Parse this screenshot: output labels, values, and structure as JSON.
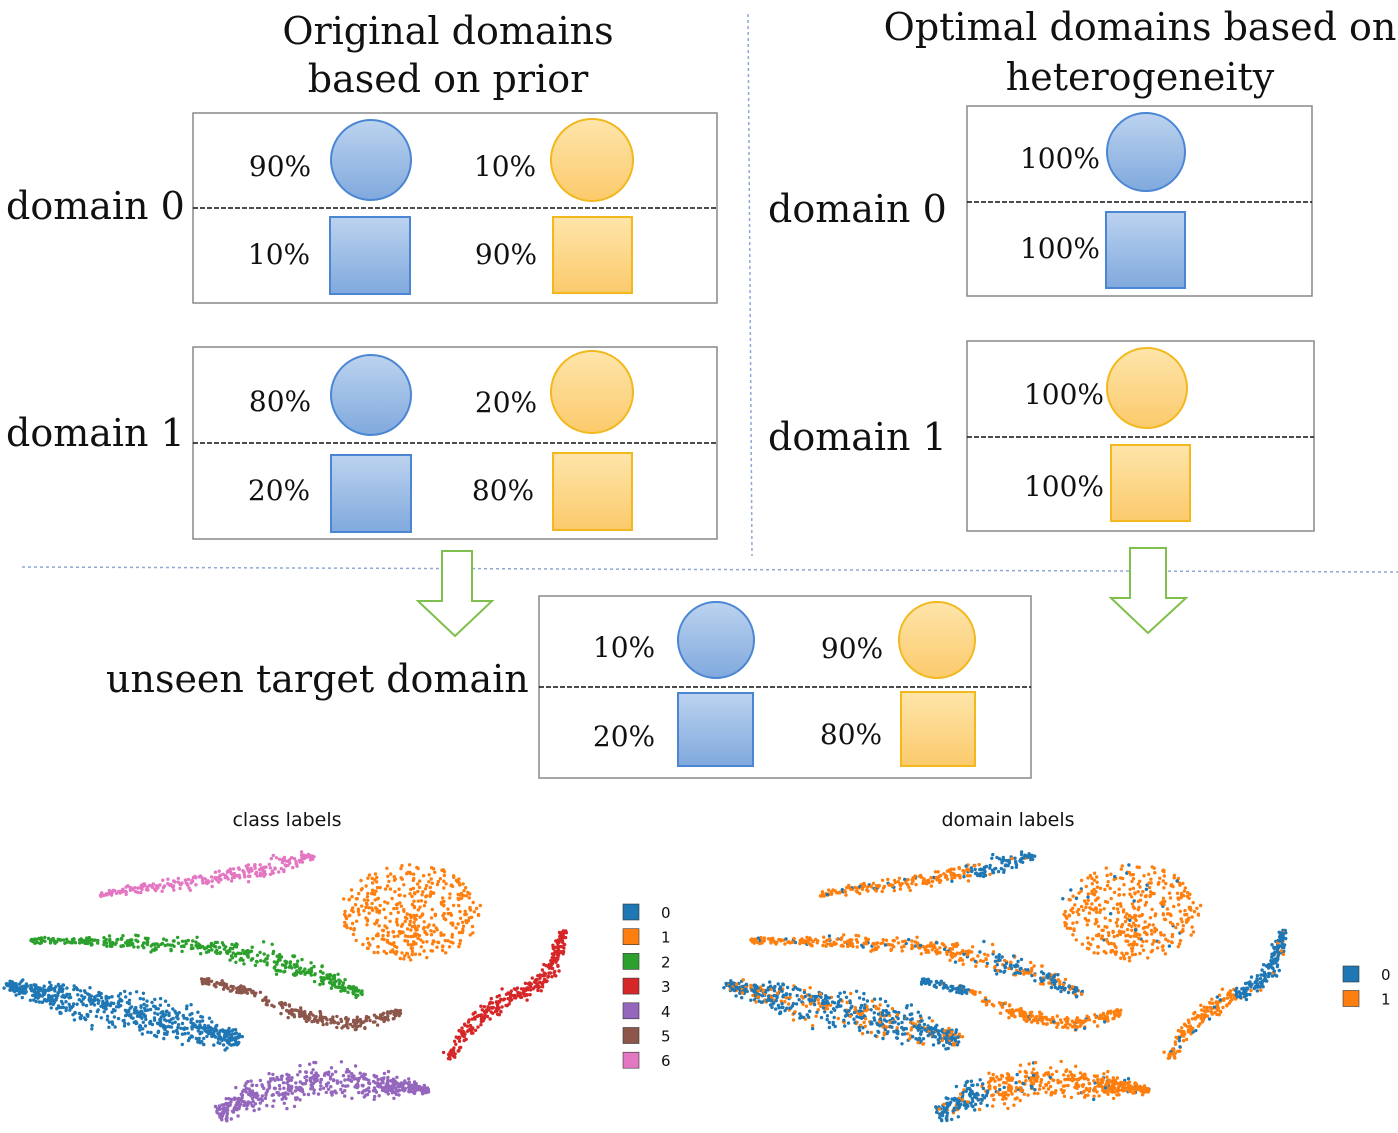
{
  "colors": {
    "blue_fill_top": "#b9d0ee",
    "blue_fill_bottom": "#7fa8dc",
    "blue_stroke": "#4a86d4",
    "orange_fill_top": "#fde3a6",
    "orange_fill_bottom": "#fccb6e",
    "orange_stroke": "#f2b81e",
    "arrow_stroke": "#7fbf4d",
    "divider": "#8fa8d6"
  },
  "left_panel": {
    "title_line1": "Original domains",
    "title_line2": "based on prior",
    "domain0_label": "domain 0",
    "domain1_label": "domain 1",
    "domain0": {
      "circle_blue": "90%",
      "circle_orange": "10%",
      "square_blue": "10%",
      "square_orange": "90%"
    },
    "domain1": {
      "circle_blue": "80%",
      "circle_orange": "20%",
      "square_blue": "20%",
      "square_orange": "80%"
    }
  },
  "right_panel": {
    "title_line1": "Optimal domains based on",
    "title_line2": "heterogeneity",
    "domain0_label": "domain 0",
    "domain1_label": "domain 1",
    "domain0": {
      "circle_blue": "100%",
      "square_blue": "100%"
    },
    "domain1": {
      "circle_orange": "100%",
      "square_orange": "100%"
    }
  },
  "target": {
    "label": "unseen target domain",
    "circle_blue": "10%",
    "circle_orange": "90%",
    "square_blue": "20%",
    "square_orange": "80%"
  },
  "class_plot": {
    "title": "class labels",
    "legend": [
      {
        "label": "0",
        "color": "#1f77b4"
      },
      {
        "label": "1",
        "color": "#ff7f0e"
      },
      {
        "label": "2",
        "color": "#2ca02c"
      },
      {
        "label": "3",
        "color": "#d62728"
      },
      {
        "label": "4",
        "color": "#9467bd"
      },
      {
        "label": "5",
        "color": "#8c564b"
      },
      {
        "label": "6",
        "color": "#e377c2"
      }
    ]
  },
  "domain_plot": {
    "title": "domain labels",
    "legend": [
      {
        "label": "0",
        "color": "#1f77b4"
      },
      {
        "label": "1",
        "color": "#ff7f0e"
      }
    ]
  }
}
